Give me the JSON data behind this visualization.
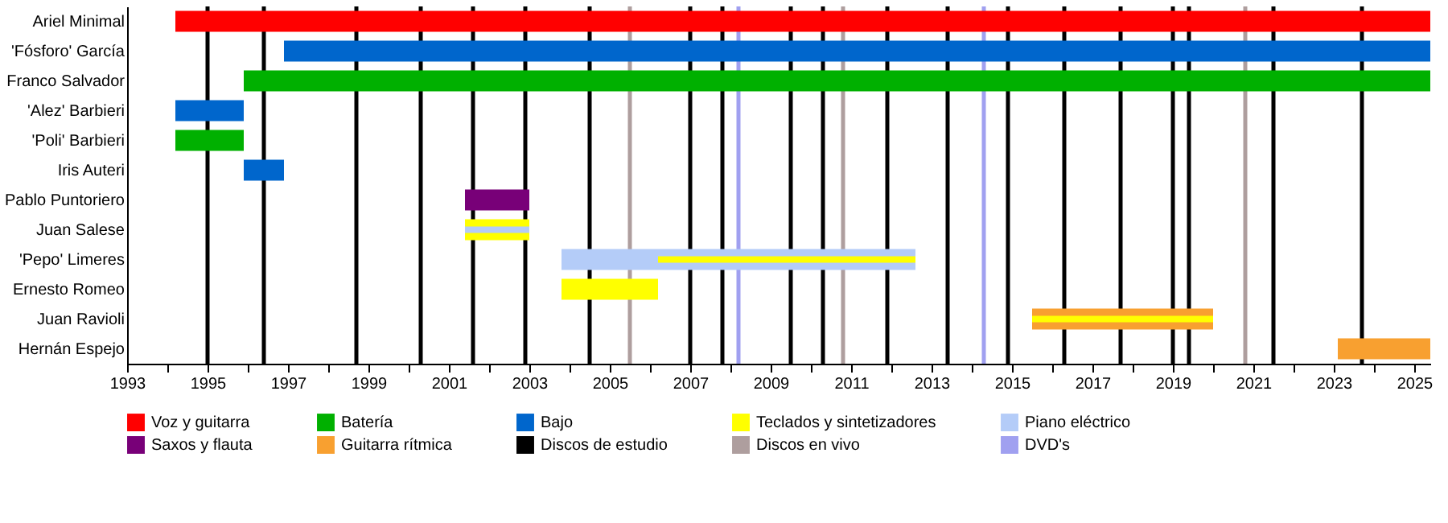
{
  "chart_data": {
    "type": "bar",
    "orientation": "horizontal",
    "categories": [
      "Ariel Minimal",
      "'Fósforo' García",
      "Franco Salvador",
      "'Alez' Barbieri",
      "'Poli' Barbieri",
      "Iris Auteri",
      "Pablo Puntoriero",
      "Juan Salese",
      "'Pepo' Limeres",
      "Ernesto Romeo",
      "Juan Ravioli",
      "Hernán Espejo"
    ],
    "series": [
      {
        "name": "Voz y guitarra",
        "color": "#ff0000",
        "base": [
          1994.2,
          null,
          null,
          null,
          null,
          null,
          null,
          null,
          null,
          null,
          null,
          null
        ],
        "values": [
          31.2,
          null,
          null,
          null,
          null,
          null,
          null,
          null,
          null,
          null,
          null,
          null
        ]
      },
      {
        "name": "Batería",
        "color": "#00b000",
        "base": [
          null,
          null,
          1995.9,
          null,
          1994.2,
          null,
          null,
          null,
          null,
          null,
          null,
          null
        ],
        "values": [
          null,
          null,
          29.5,
          null,
          1.7,
          null,
          null,
          null,
          null,
          null,
          null,
          null
        ]
      },
      {
        "name": "Bajo",
        "color": "#0066cc",
        "base": [
          null,
          1996.9,
          null,
          1994.2,
          null,
          1995.9,
          null,
          null,
          null,
          null,
          null,
          null
        ],
        "values": [
          null,
          28.5,
          null,
          1.7,
          null,
          1.0,
          null,
          null,
          null,
          null,
          null,
          null
        ]
      },
      {
        "name": "Teclados y sintetizadores",
        "color": "#ffff00",
        "base": [
          null,
          null,
          null,
          null,
          null,
          null,
          null,
          2001.4,
          null,
          2003.8,
          null,
          null
        ],
        "values": [
          null,
          null,
          null,
          null,
          null,
          null,
          null,
          1.6,
          null,
          2.4,
          null,
          null
        ]
      },
      {
        "name": "Piano eléctrico",
        "color": "#b4ccf8",
        "base": [
          null,
          null,
          null,
          null,
          null,
          null,
          null,
          2001.4,
          2003.8,
          null,
          null,
          null
        ],
        "values": [
          null,
          null,
          null,
          null,
          null,
          null,
          null,
          1.6,
          8.8,
          null,
          null,
          null
        ]
      },
      {
        "name": "Saxos y flauta",
        "color": "#780078",
        "base": [
          null,
          null,
          null,
          null,
          null,
          null,
          2001.4,
          null,
          null,
          null,
          null,
          null
        ],
        "values": [
          null,
          null,
          null,
          null,
          null,
          null,
          1.6,
          null,
          null,
          null,
          null,
          null
        ]
      },
      {
        "name": "Guitarra rítmica",
        "color": "#f8a030",
        "base": [
          null,
          null,
          null,
          null,
          null,
          null,
          null,
          null,
          null,
          null,
          2015.5,
          2023.1
        ],
        "values": [
          null,
          null,
          null,
          null,
          null,
          null,
          null,
          null,
          null,
          null,
          4.5,
          2.3
        ]
      },
      {
        "color": "#ffff00",
        "base": [
          null,
          null,
          null,
          null,
          null,
          null,
          null,
          null,
          2006.2,
          null,
          2015.5,
          null
        ],
        "values": [
          null,
          null,
          null,
          null,
          null,
          null,
          null,
          null,
          6.4,
          null,
          4.5,
          null
        ]
      }
    ],
    "ref_lines": [
      {
        "axis": "x",
        "value": 1995.0,
        "label": "Discos de estudio",
        "color": "#000000"
      },
      {
        "axis": "x",
        "value": 1996.4,
        "color": "#000000"
      },
      {
        "axis": "x",
        "value": 1998.7,
        "color": "#000000"
      },
      {
        "axis": "x",
        "value": 2000.3,
        "color": "#000000"
      },
      {
        "axis": "x",
        "value": 2001.6,
        "color": "#000000"
      },
      {
        "axis": "x",
        "value": 2002.9,
        "color": "#000000"
      },
      {
        "axis": "x",
        "value": 2004.5,
        "color": "#000000"
      },
      {
        "axis": "x",
        "value": 2007.0,
        "color": "#000000"
      },
      {
        "axis": "x",
        "value": 2007.8,
        "color": "#000000"
      },
      {
        "axis": "x",
        "value": 2009.5,
        "color": "#000000"
      },
      {
        "axis": "x",
        "value": 2010.3,
        "color": "#000000"
      },
      {
        "axis": "x",
        "value": 2011.9,
        "color": "#000000"
      },
      {
        "axis": "x",
        "value": 2013.4,
        "color": "#000000"
      },
      {
        "axis": "x",
        "value": 2014.9,
        "color": "#000000"
      },
      {
        "axis": "x",
        "value": 2016.3,
        "color": "#000000"
      },
      {
        "axis": "x",
        "value": 2017.7,
        "color": "#000000"
      },
      {
        "axis": "x",
        "value": 2019.0,
        "color": "#000000"
      },
      {
        "axis": "x",
        "value": 2019.4,
        "color": "#000000"
      },
      {
        "axis": "x",
        "value": 2021.5,
        "color": "#000000"
      },
      {
        "axis": "x",
        "value": 2023.7,
        "color": "#000000"
      },
      {
        "axis": "x",
        "value": 2005.5,
        "label": "Discos en vivo",
        "color": "#ae9e9e"
      },
      {
        "axis": "x",
        "value": 2010.8,
        "color": "#ae9e9e"
      },
      {
        "axis": "x",
        "value": 2020.8,
        "color": "#ae9e9e"
      },
      {
        "axis": "x",
        "value": 2008.2,
        "label": "DVD's",
        "color": "#a0a0f0"
      },
      {
        "axis": "x",
        "value": 2014.3,
        "color": "#a0a0f0"
      }
    ],
    "xlim": [
      1993,
      2025.4
    ],
    "xticks": [
      1993,
      {
        "value": 1994,
        "label": null
      },
      1995,
      {
        "value": 1996,
        "label": null
      },
      1997,
      {
        "value": 1998,
        "label": null
      },
      1999,
      {
        "value": 2000,
        "label": null
      },
      2001,
      {
        "value": 2002,
        "label": null
      },
      2003,
      {
        "value": 2004,
        "label": null
      },
      2005,
      {
        "value": 2006,
        "label": null
      },
      2007,
      {
        "value": 2008,
        "label": null
      },
      2009,
      {
        "value": 2010,
        "label": null
      },
      2011,
      {
        "value": 2012,
        "label": null
      },
      2013,
      {
        "value": 2014,
        "label": null
      },
      2015,
      {
        "value": 2016,
        "label": null
      },
      2017,
      {
        "value": 2018,
        "label": null
      },
      2019,
      {
        "value": 2020,
        "label": null
      },
      2021,
      {
        "value": 2022,
        "label": null
      },
      2023,
      {
        "value": 2024,
        "label": null
      },
      2025
    ],
    "grid": false,
    "legend": "bottom"
  }
}
